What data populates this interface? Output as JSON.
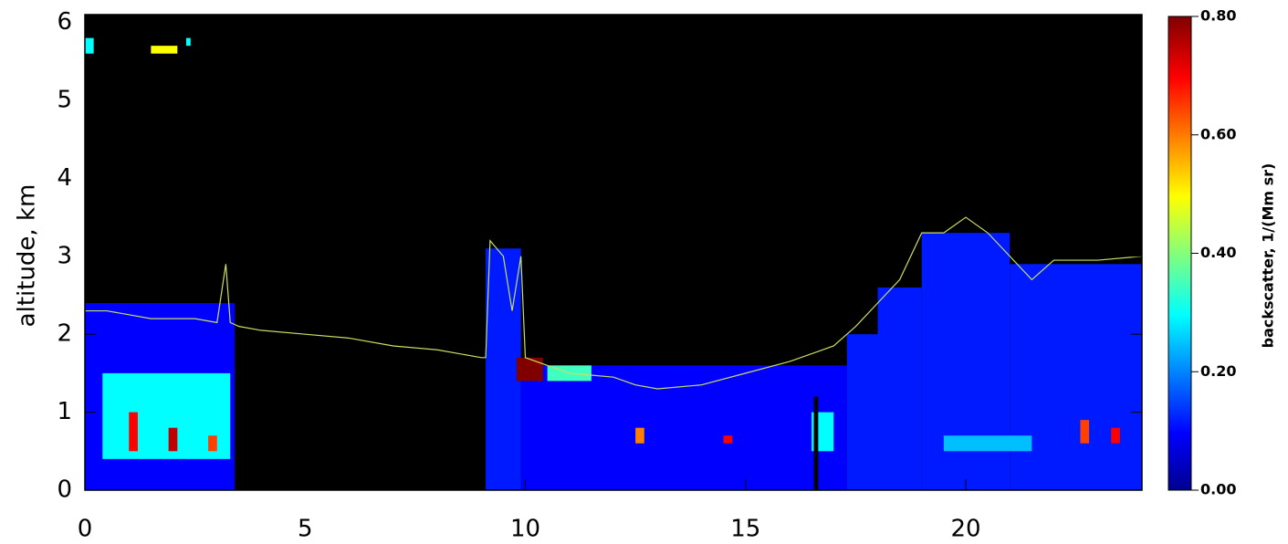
{
  "chart_data": {
    "type": "heatmap",
    "y_label": "altitude, km",
    "colorbar_label": "backscatter, 1/(Mm sr)",
    "xlim": [
      0,
      24
    ],
    "xticks": [
      0,
      5,
      10,
      15,
      20
    ],
    "ylim": [
      0,
      6.1
    ],
    "yticks": [
      0,
      1,
      2,
      3,
      4,
      5,
      6
    ],
    "clim": [
      0,
      0.8
    ],
    "cticks": [
      {
        "value": 0,
        "label": "0.00"
      },
      {
        "value": 0.2,
        "label": "0.20"
      },
      {
        "value": 0.4,
        "label": "0.40"
      },
      {
        "value": 0.6,
        "label": "0.60"
      },
      {
        "value": 0.8,
        "label": "0.80"
      }
    ],
    "background": "#000000",
    "cells": [
      {
        "x": [
          0,
          3.4
        ],
        "y": [
          0,
          2.4
        ],
        "value": 0.1
      },
      {
        "x": [
          9.1,
          9.9
        ],
        "y": [
          0,
          3.1
        ],
        "value": 0.12
      },
      {
        "x": [
          9.9,
          17.3
        ],
        "y": [
          0,
          1.6
        ],
        "value": 0.1
      },
      {
        "x": [
          17.3,
          18
        ],
        "y": [
          0,
          2.0
        ],
        "value": 0.12
      },
      {
        "x": [
          18,
          19
        ],
        "y": [
          0,
          2.6
        ],
        "value": 0.12
      },
      {
        "x": [
          19,
          21
        ],
        "y": [
          0,
          3.3
        ],
        "value": 0.12
      },
      {
        "x": [
          21,
          24
        ],
        "y": [
          0,
          2.9
        ],
        "value": 0.12
      },
      {
        "x": [
          0.4,
          3.3
        ],
        "y": [
          0.4,
          1.5
        ],
        "value": 0.3
      },
      {
        "x": [
          1.0,
          1.2
        ],
        "y": [
          0.5,
          1.0
        ],
        "value": 0.7
      },
      {
        "x": [
          1.9,
          2.1
        ],
        "y": [
          0.5,
          0.8
        ],
        "value": 0.75
      },
      {
        "x": [
          2.8,
          3.0
        ],
        "y": [
          0.5,
          0.7
        ],
        "value": 0.65
      },
      {
        "x": [
          9.8,
          10.4
        ],
        "y": [
          1.4,
          1.7
        ],
        "value": 0.8
      },
      {
        "x": [
          10.5,
          11.5
        ],
        "y": [
          1.4,
          1.6
        ],
        "value": 0.35
      },
      {
        "x": [
          12.5,
          12.7
        ],
        "y": [
          0.6,
          0.8
        ],
        "value": 0.6
      },
      {
        "x": [
          14.5,
          14.7
        ],
        "y": [
          0.6,
          0.7
        ],
        "value": 0.7
      },
      {
        "x": [
          16.5,
          17
        ],
        "y": [
          0.5,
          1.0
        ],
        "value": 0.3
      },
      {
        "x": [
          16.55,
          16.65
        ],
        "y": [
          0,
          1.2
        ],
        "value": 0
      },
      {
        "x": [
          19.5,
          21.5
        ],
        "y": [
          0.5,
          0.7
        ],
        "value": 0.25
      },
      {
        "x": [
          22.6,
          22.8
        ],
        "y": [
          0.6,
          0.9
        ],
        "value": 0.65
      },
      {
        "x": [
          23.3,
          23.5
        ],
        "y": [
          0.6,
          0.8
        ],
        "value": 0.7
      },
      {
        "x": [
          0,
          0.2
        ],
        "y": [
          5.6,
          5.8
        ],
        "value": 0.3
      },
      {
        "x": [
          1.5,
          2.1
        ],
        "y": [
          5.6,
          5.7
        ],
        "value": 0.5
      },
      {
        "x": [
          2.3,
          2.4
        ],
        "y": [
          5.7,
          5.8
        ],
        "value": 0.3
      }
    ],
    "line": {
      "color": "#c8e060",
      "x": [
        0,
        0.5,
        1,
        1.5,
        2,
        2.5,
        3,
        3.2,
        3.3,
        3.5,
        4,
        5,
        6,
        7,
        8,
        9,
        9.1,
        9.2,
        9.5,
        9.7,
        9.9,
        10,
        11,
        12,
        12.5,
        13,
        14,
        15,
        16,
        17,
        17.5,
        18,
        18.5,
        19,
        19.5,
        20,
        20.5,
        21,
        21.5,
        22,
        23,
        24
      ],
      "values": [
        2.3,
        2.3,
        2.25,
        2.2,
        2.2,
        2.2,
        2.15,
        2.9,
        2.15,
        2.1,
        2.05,
        2.0,
        1.95,
        1.85,
        1.8,
        1.7,
        1.7,
        3.2,
        3.0,
        2.3,
        3.0,
        1.7,
        1.5,
        1.45,
        1.35,
        1.3,
        1.35,
        1.5,
        1.65,
        1.85,
        2.1,
        2.4,
        2.7,
        3.3,
        3.3,
        3.5,
        3.3,
        3.0,
        2.7,
        2.95,
        2.95,
        3.0
      ]
    }
  }
}
